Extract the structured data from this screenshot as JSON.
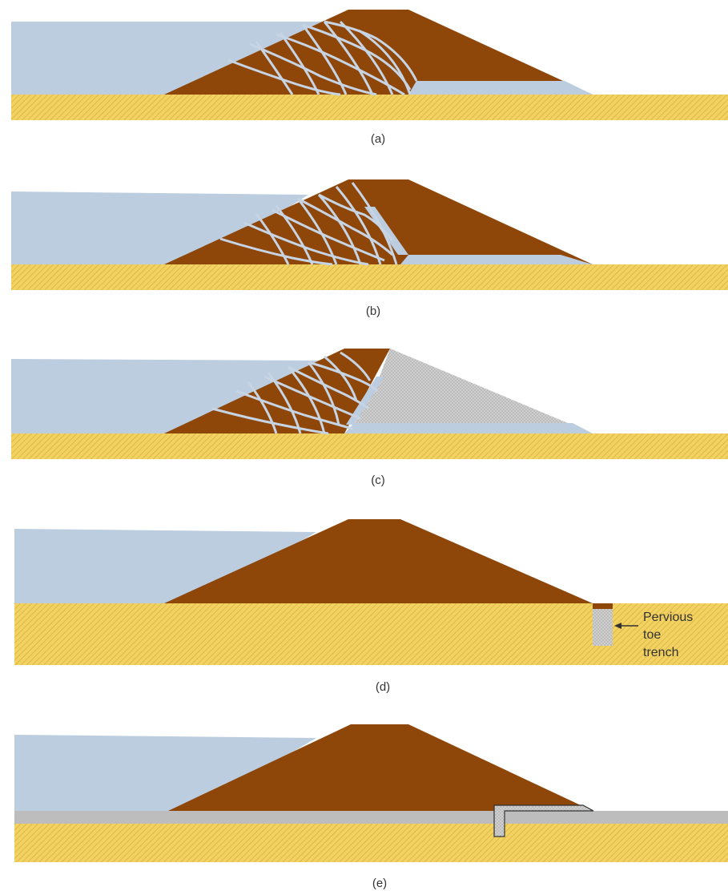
{
  "panels": [
    {
      "caption": "(a)",
      "drain": "none"
    },
    {
      "caption": "(b)",
      "drain": "chimney"
    },
    {
      "caption": "(c)",
      "drain": "pervious downstream shell"
    },
    {
      "caption": "(d)",
      "drain": "pervious toe trench",
      "annotation": {
        "lines": [
          "Pervious",
          "toe",
          "trench"
        ]
      }
    },
    {
      "caption": "(e)",
      "drain": "horizontal blanket"
    }
  ],
  "colors": {
    "water": "#bccde0",
    "embankment": "#8e4609",
    "foundation": "#f2d263",
    "foundation_hatch": "#d9b13a",
    "gravel": "#b9b9b9",
    "flowline": "#c7d4e4",
    "blanket_layer": "#bdbdbd",
    "text": "#333333"
  }
}
